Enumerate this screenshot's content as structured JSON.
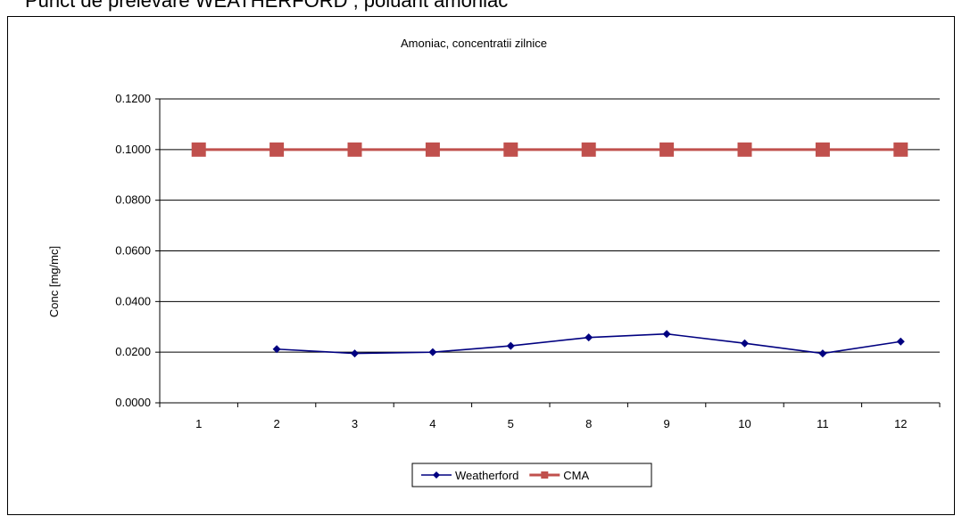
{
  "page": {
    "heading": "Punct de prelevare WEATHERFORD , poluant amoniac"
  },
  "chart_data": {
    "type": "line",
    "title": "Amoniac, concentratii zilnice",
    "xlabel": "",
    "ylabel": "Conc [mg/mc]",
    "categories": [
      "1",
      "2",
      "3",
      "4",
      "5",
      "8",
      "9",
      "10",
      "11",
      "12"
    ],
    "ylim": [
      0,
      0.12
    ],
    "yticks": [
      0.0,
      0.02,
      0.04,
      0.06,
      0.08,
      0.1,
      0.12
    ],
    "ytick_labels": [
      "0.0000",
      "0.0200",
      "0.0400",
      "0.0600",
      "0.0800",
      "0.1000",
      "0.1200"
    ],
    "grid": true,
    "legend_position": "bottom",
    "series": [
      {
        "name": "Weatherford",
        "color": "#000080",
        "marker": "diamond",
        "values": [
          null,
          0.0212,
          0.0195,
          0.02,
          0.0225,
          0.0258,
          0.0272,
          0.0235,
          0.0195,
          0.0242
        ]
      },
      {
        "name": "CMA",
        "color": "#c0504d",
        "marker": "square",
        "values": [
          0.1,
          0.1,
          0.1,
          0.1,
          0.1,
          0.1,
          0.1,
          0.1,
          0.1,
          0.1
        ]
      }
    ]
  }
}
